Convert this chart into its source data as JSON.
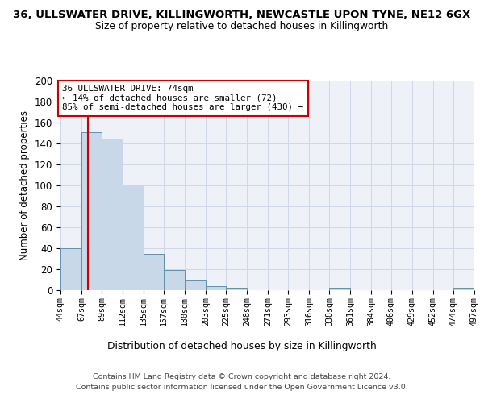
{
  "title_main": "36, ULLSWATER DRIVE, KILLINGWORTH, NEWCASTLE UPON TYNE, NE12 6GX",
  "title_sub": "Size of property relative to detached houses in Killingworth",
  "xlabel": "Distribution of detached houses by size in Killingworth",
  "ylabel": "Number of detached properties",
  "bin_edges": [
    44,
    67,
    89,
    112,
    135,
    157,
    180,
    203,
    225,
    248,
    271,
    293,
    316,
    338,
    361,
    384,
    406,
    429,
    452,
    474,
    497
  ],
  "bar_heights": [
    40,
    151,
    145,
    101,
    35,
    19,
    9,
    4,
    2,
    0,
    0,
    0,
    0,
    2,
    0,
    0,
    0,
    0,
    0,
    2
  ],
  "bar_color": "#c8d8e8",
  "bar_edge_color": "#6090b0",
  "property_size": 74,
  "vline_color": "#cc0000",
  "annotation_line1": "36 ULLSWATER DRIVE: 74sqm",
  "annotation_line2": "← 14% of detached houses are smaller (72)",
  "annotation_line3": "85% of semi-detached houses are larger (430) →",
  "annotation_box_color": "#ffffff",
  "annotation_box_edge": "#cc0000",
  "ylim": [
    0,
    200
  ],
  "yticks": [
    0,
    20,
    40,
    60,
    80,
    100,
    120,
    140,
    160,
    180,
    200
  ],
  "grid_color": "#d0d8e8",
  "bg_color": "#eef2f8",
  "footer_line1": "Contains HM Land Registry data © Crown copyright and database right 2024.",
  "footer_line2": "Contains public sector information licensed under the Open Government Licence v3.0.",
  "tick_labels": [
    "44sqm",
    "67sqm",
    "89sqm",
    "112sqm",
    "135sqm",
    "157sqm",
    "180sqm",
    "203sqm",
    "225sqm",
    "248sqm",
    "271sqm",
    "293sqm",
    "316sqm",
    "338sqm",
    "361sqm",
    "384sqm",
    "406sqm",
    "429sqm",
    "452sqm",
    "474sqm",
    "497sqm"
  ]
}
